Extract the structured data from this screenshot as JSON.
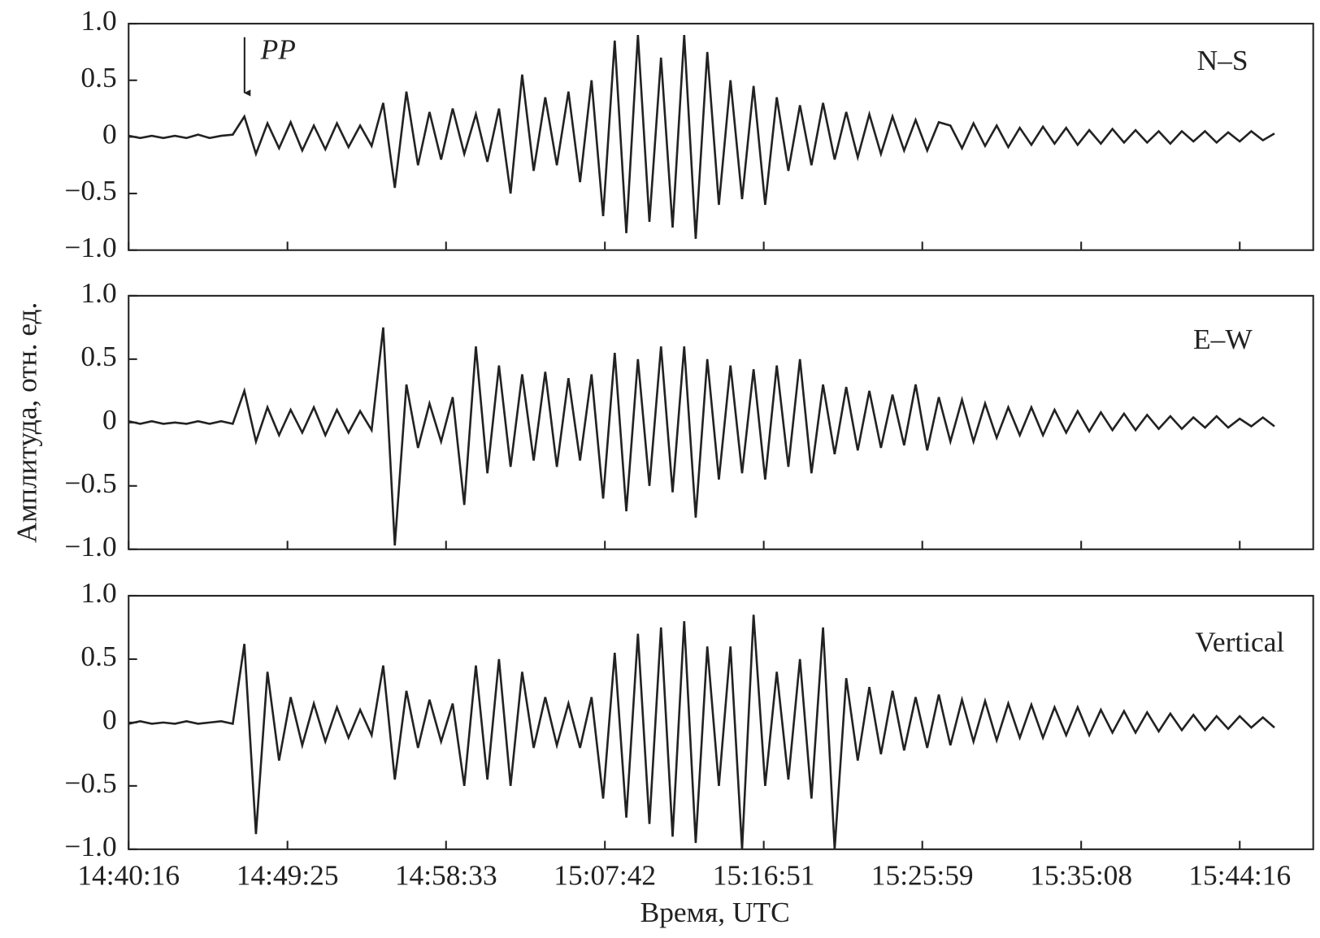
{
  "chart_data": [
    {
      "type": "line",
      "label": "N–S",
      "annotation": "PP",
      "color": "#222222",
      "xlim": [
        52816,
        56910
      ],
      "xticks": [
        52816,
        53365,
        53913,
        54462,
        55011,
        55559,
        56108,
        56656
      ],
      "ylim": [
        -1,
        1
      ],
      "yticks": [
        {
          "value": 1,
          "label": "1.0"
        },
        0.5,
        0,
        {
          "value": -0.5,
          "label": "−0.5"
        },
        {
          "value": -1,
          "label": "−1.0"
        }
      ],
      "x": [
        52816,
        52856,
        52896,
        52936,
        52976,
        53016,
        53056,
        53096,
        53136,
        53176,
        53216,
        53256,
        53296,
        53336,
        53376,
        53416,
        53456,
        53496,
        53536,
        53576,
        53616,
        53656,
        53696,
        53736,
        53776,
        53816,
        53856,
        53896,
        53936,
        53976,
        54016,
        54056,
        54096,
        54136,
        54176,
        54216,
        54256,
        54296,
        54336,
        54376,
        54416,
        54456,
        54496,
        54536,
        54576,
        54616,
        54656,
        54696,
        54736,
        54776,
        54816,
        54856,
        54896,
        54936,
        54976,
        55016,
        55056,
        55096,
        55136,
        55176,
        55216,
        55256,
        55296,
        55336,
        55376,
        55416,
        55456,
        55496,
        55536,
        55576,
        55616,
        55656,
        55696,
        55736,
        55776,
        55816,
        55856,
        55896,
        55936,
        55976,
        56016,
        56056,
        56096,
        56136,
        56176,
        56216,
        56256,
        56296,
        56336,
        56376,
        56416,
        56456,
        56496,
        56536,
        56576,
        56616,
        56656,
        56696,
        56736,
        56776
      ],
      "values": [
        0.01,
        -0.01,
        0.01,
        -0.01,
        0.01,
        -0.01,
        0.02,
        -0.01,
        0.01,
        0.02,
        0.18,
        -0.15,
        0.12,
        -0.1,
        0.13,
        -0.12,
        0.1,
        -0.11,
        0.12,
        -0.09,
        0.1,
        -0.08,
        0.3,
        -0.45,
        0.4,
        -0.25,
        0.22,
        -0.2,
        0.25,
        -0.15,
        0.2,
        -0.22,
        0.25,
        -0.5,
        0.55,
        -0.3,
        0.35,
        -0.25,
        0.4,
        -0.4,
        0.5,
        -0.7,
        0.85,
        -0.85,
        0.9,
        -0.75,
        0.7,
        -0.8,
        0.9,
        -0.9,
        0.75,
        -0.6,
        0.5,
        -0.55,
        0.45,
        -0.6,
        0.35,
        -0.3,
        0.28,
        -0.25,
        0.3,
        -0.2,
        0.22,
        -0.18,
        0.2,
        -0.15,
        0.18,
        -0.12,
        0.15,
        -0.12,
        0.13,
        0.1,
        -0.1,
        0.12,
        -0.08,
        0.1,
        -0.09,
        0.08,
        -0.07,
        0.09,
        -0.06,
        0.08,
        -0.07,
        0.06,
        -0.06,
        0.07,
        -0.05,
        0.06,
        -0.05,
        0.05,
        -0.06,
        0.05,
        -0.04,
        0.05,
        -0.05,
        0.04,
        -0.04,
        0.05,
        -0.03,
        0.03
      ]
    },
    {
      "type": "line",
      "label": "E–W",
      "ylabel": "Амплитуда, отн. ед.",
      "color": "#222222",
      "xlim": [
        52816,
        56910
      ],
      "xticks": [
        52816,
        53365,
        53913,
        54462,
        55011,
        55559,
        56108,
        56656
      ],
      "ylim": [
        -1,
        1
      ],
      "yticks": [
        {
          "value": 1,
          "label": "1.0"
        },
        0.5,
        0,
        {
          "value": -0.5,
          "label": "−0.5"
        },
        {
          "value": -1,
          "label": "−1.0"
        }
      ],
      "x": [
        52816,
        52856,
        52896,
        52936,
        52976,
        53016,
        53056,
        53096,
        53136,
        53176,
        53216,
        53256,
        53296,
        53336,
        53376,
        53416,
        53456,
        53496,
        53536,
        53576,
        53616,
        53656,
        53696,
        53736,
        53776,
        53816,
        53856,
        53896,
        53936,
        53976,
        54016,
        54056,
        54096,
        54136,
        54176,
        54216,
        54256,
        54296,
        54336,
        54376,
        54416,
        54456,
        54496,
        54536,
        54576,
        54616,
        54656,
        54696,
        54736,
        54776,
        54816,
        54856,
        54896,
        54936,
        54976,
        55016,
        55056,
        55096,
        55136,
        55176,
        55216,
        55256,
        55296,
        55336,
        55376,
        55416,
        55456,
        55496,
        55536,
        55576,
        55616,
        55656,
        55696,
        55736,
        55776,
        55816,
        55856,
        55896,
        55936,
        55976,
        56016,
        56056,
        56096,
        56136,
        56176,
        56216,
        56256,
        56296,
        56336,
        56376,
        56416,
        56456,
        56496,
        56536,
        56576,
        56616,
        56656,
        56696,
        56736,
        56776
      ],
      "values": [
        0.01,
        -0.01,
        0.01,
        -0.01,
        0.0,
        -0.01,
        0.01,
        -0.01,
        0.01,
        -0.01,
        0.25,
        -0.15,
        0.12,
        -0.1,
        0.1,
        -0.08,
        0.12,
        -0.1,
        0.1,
        -0.08,
        0.09,
        -0.06,
        0.75,
        -0.97,
        0.3,
        -0.2,
        0.15,
        -0.15,
        0.2,
        -0.65,
        0.6,
        -0.4,
        0.45,
        -0.35,
        0.38,
        -0.3,
        0.4,
        -0.35,
        0.35,
        -0.3,
        0.38,
        -0.6,
        0.55,
        -0.7,
        0.5,
        -0.5,
        0.6,
        -0.55,
        0.6,
        -0.75,
        0.5,
        -0.45,
        0.45,
        -0.4,
        0.42,
        -0.45,
        0.45,
        -0.35,
        0.5,
        -0.4,
        0.3,
        -0.25,
        0.28,
        -0.22,
        0.25,
        -0.2,
        0.22,
        -0.18,
        0.3,
        -0.22,
        0.2,
        -0.15,
        0.18,
        -0.15,
        0.15,
        -0.12,
        0.12,
        -0.1,
        0.12,
        -0.1,
        0.1,
        -0.08,
        0.09,
        -0.07,
        0.08,
        -0.06,
        0.07,
        -0.06,
        0.06,
        -0.05,
        0.05,
        -0.05,
        0.04,
        -0.04,
        0.05,
        -0.04,
        0.03,
        -0.03,
        0.04,
        -0.03
      ]
    },
    {
      "type": "line",
      "label": "Vertical",
      "xlabel": "Время, UTC",
      "color": "#222222",
      "xlim": [
        52816,
        56910
      ],
      "xticks": [
        {
          "value": 52816,
          "label": "14:40:16"
        },
        {
          "value": 53365,
          "label": "14:49:25"
        },
        {
          "value": 53913,
          "label": "14:58:33"
        },
        {
          "value": 54462,
          "label": "15:07:42"
        },
        {
          "value": 55011,
          "label": "15:16:51"
        },
        {
          "value": 55559,
          "label": "15:25:59"
        },
        {
          "value": 56108,
          "label": "15:35:08"
        },
        {
          "value": 56656,
          "label": "15:44:16"
        }
      ],
      "ylim": [
        -1,
        1
      ],
      "yticks": [
        {
          "value": 1,
          "label": "1.0"
        },
        0.5,
        0,
        {
          "value": -0.5,
          "label": "−0.5"
        },
        {
          "value": -1,
          "label": "−1.0"
        }
      ],
      "x": [
        52816,
        52856,
        52896,
        52936,
        52976,
        53016,
        53056,
        53096,
        53136,
        53176,
        53216,
        53256,
        53296,
        53336,
        53376,
        53416,
        53456,
        53496,
        53536,
        53576,
        53616,
        53656,
        53696,
        53736,
        53776,
        53816,
        53856,
        53896,
        53936,
        53976,
        54016,
        54056,
        54096,
        54136,
        54176,
        54216,
        54256,
        54296,
        54336,
        54376,
        54416,
        54456,
        54496,
        54536,
        54576,
        54616,
        54656,
        54696,
        54736,
        54776,
        54816,
        54856,
        54896,
        54936,
        54976,
        55016,
        55056,
        55096,
        55136,
        55176,
        55216,
        55256,
        55296,
        55336,
        55376,
        55416,
        55456,
        55496,
        55536,
        55576,
        55616,
        55656,
        55696,
        55736,
        55776,
        55816,
        55856,
        55896,
        55936,
        55976,
        56016,
        56056,
        56096,
        56136,
        56176,
        56216,
        56256,
        56296,
        56336,
        56376,
        56416,
        56456,
        56496,
        56536,
        56576,
        56616,
        56656,
        56696,
        56736,
        56776
      ],
      "values": [
        -0.01,
        0.01,
        -0.01,
        0.0,
        -0.01,
        0.01,
        -0.01,
        0.0,
        0.01,
        -0.01,
        0.62,
        -0.88,
        0.4,
        -0.3,
        0.2,
        -0.18,
        0.15,
        -0.15,
        0.12,
        -0.12,
        0.1,
        -0.1,
        0.45,
        -0.45,
        0.25,
        -0.2,
        0.18,
        -0.15,
        0.15,
        -0.5,
        0.45,
        -0.45,
        0.5,
        -0.5,
        0.4,
        -0.2,
        0.2,
        -0.18,
        0.15,
        -0.2,
        0.2,
        -0.6,
        0.55,
        -0.75,
        0.7,
        -0.8,
        0.75,
        -0.9,
        0.8,
        -0.95,
        0.6,
        -0.5,
        0.6,
        -1.0,
        0.85,
        -0.5,
        0.4,
        -0.45,
        0.5,
        -0.6,
        0.75,
        -1.0,
        0.35,
        -0.3,
        0.28,
        -0.25,
        0.25,
        -0.22,
        0.2,
        -0.2,
        0.22,
        -0.18,
        0.18,
        -0.15,
        0.17,
        -0.14,
        0.15,
        -0.12,
        0.14,
        -0.12,
        0.12,
        -0.1,
        0.12,
        -0.1,
        0.1,
        -0.08,
        0.09,
        -0.08,
        0.08,
        -0.07,
        0.07,
        -0.06,
        0.06,
        -0.06,
        0.05,
        -0.05,
        0.05,
        -0.04,
        0.04,
        -0.04
      ]
    }
  ]
}
